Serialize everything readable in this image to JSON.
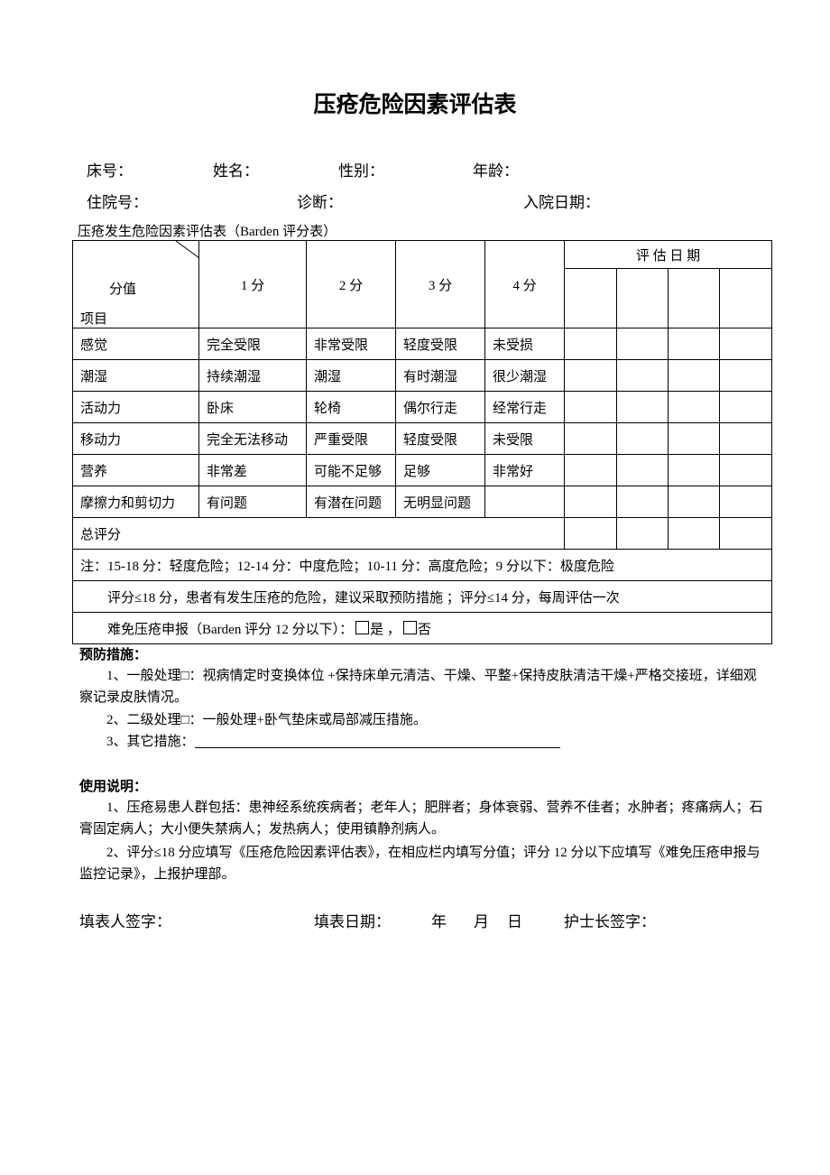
{
  "title": "压疮危险因素评估表",
  "info": {
    "bed_no": "床号：",
    "name": "姓名：",
    "gender": "性别：",
    "age": "年龄：",
    "admission_no": "住院号：",
    "diagnosis": "诊断：",
    "admission_date": "入院日期："
  },
  "table_caption": "压疮发生危险因素评估表（Barden 评分表）",
  "table": {
    "corner_top": "分值",
    "corner_bottom": "项目",
    "score_headers": [
      "1 分",
      "2 分",
      "3 分",
      "4 分"
    ],
    "eval_date_header": "评 估 日 期",
    "rows": [
      {
        "item": "感觉",
        "s1": "完全受限",
        "s2": "非常受限",
        "s3": "轻度受限",
        "s4": "未受损"
      },
      {
        "item": "潮湿",
        "s1": "持续潮湿",
        "s2": "潮湿",
        "s3": "有时潮湿",
        "s4": "很少潮湿"
      },
      {
        "item": "活动力",
        "s1": "卧床",
        "s2": "轮椅",
        "s3": "偶尔行走",
        "s4": "经常行走"
      },
      {
        "item": "移动力",
        "s1": "完全无法移动",
        "s2": "严重受限",
        "s3": "轻度受限",
        "s4": "未受限"
      },
      {
        "item": "营养",
        "s1": "非常差",
        "s2": "可能不足够",
        "s3": "足够",
        "s4": "非常好"
      },
      {
        "item": "摩擦力和剪切力",
        "s1": "有问题",
        "s2": "有潜在问题",
        "s3": "无明显问题",
        "s4": ""
      }
    ],
    "total_label": "总评分",
    "note1": "注：15-18 分：轻度危险；12-14 分：中度危险；10-11 分：高度危险；9 分以下：极度危险",
    "note2": "评分≤18 分，患者有发生压疮的危险，建议采取预防措施 ；评分≤14 分，每周评估一次",
    "note3_label": "难免压疮申报（Barden 评分 12 分以下）：",
    "note3_yes": "是 ，",
    "note3_no": "否"
  },
  "prevention": {
    "heading": "预防措施：",
    "item1": "1、一般处理□：视病情定时变换体位 +保持床单元清洁、干燥、平整+保持皮肤清洁干燥+严格交接班，详细观察记录皮肤情况。",
    "item2": "2、二级处理□：一般处理+卧气垫床或局部减压措施。",
    "item3": "3、其它措施："
  },
  "usage": {
    "heading": "使用说明：",
    "item1": "1、压疮易患人群包括：患神经系统疾病者；老年人；肥胖者；身体衰弱、营养不佳者；水肿者；疼痛病人；石膏固定病人；大小便失禁病人；发热病人；使用镇静剂病人。",
    "item2": "2、评分≤18 分应填写《压疮危险因素评估表》，在相应栏内填写分值；评分 12 分以下应填写《难免压疮申报与监控记录》，上报护理部。"
  },
  "footer": {
    "filler_sign": "填表人签字：",
    "fill_date": "填表日期：",
    "year": "年",
    "month": "月",
    "day": "日",
    "head_nurse_sign": "护士长签字："
  }
}
